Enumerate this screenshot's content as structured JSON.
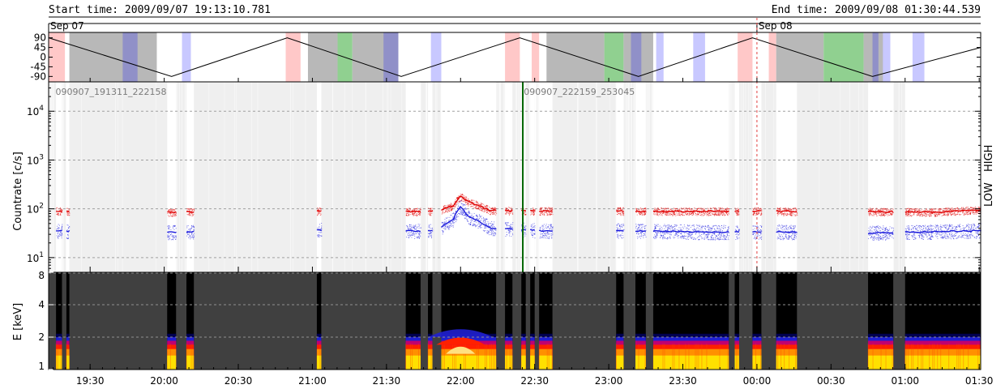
{
  "header": {
    "start": "Start time: 2009/09/07 19:13:10.781",
    "end": "End time: 2009/09/08 01:30:44.539"
  },
  "colors": {
    "low": "#e00000",
    "high": "#1a1adc",
    "saa": "#ffc8c8",
    "eclipse": "#b8b8b8",
    "dark": "#9090c8",
    "lightblue": "#c8c8ff",
    "green": "#90d090",
    "flare_marker": "#006400",
    "midnight_marker": "#e04040"
  },
  "chart_data": [
    {
      "type": "line",
      "panel": "orbit",
      "yticks": [
        "90",
        "45",
        "0",
        "-45",
        "-90"
      ],
      "ylim": [
        -100,
        100
      ],
      "date_labels": [
        {
          "t": 19.22,
          "text": "Sep 07"
        },
        {
          "t": 24.0,
          "text": "Sep 08"
        }
      ],
      "x": [
        19.22,
        20.05,
        20.83,
        21.6,
        22.4,
        23.2,
        23.97,
        24.78,
        25.51
      ],
      "values": [
        90,
        -90,
        90,
        -90,
        90,
        -90,
        90,
        -90,
        45
      ],
      "bands": [
        {
          "from": 19.22,
          "to": 19.33,
          "kind": "saa"
        },
        {
          "from": 19.36,
          "to": 19.95,
          "kind": "eclipse"
        },
        {
          "from": 19.72,
          "to": 19.82,
          "kind": "dark"
        },
        {
          "from": 20.12,
          "to": 20.18,
          "kind": "lightblue"
        },
        {
          "from": 20.82,
          "to": 20.92,
          "kind": "saa"
        },
        {
          "from": 20.97,
          "to": 21.17,
          "kind": "eclipse"
        },
        {
          "from": 21.17,
          "to": 21.27,
          "kind": "green"
        },
        {
          "from": 21.27,
          "to": 21.58,
          "kind": "eclipse"
        },
        {
          "from": 21.48,
          "to": 21.58,
          "kind": "dark"
        },
        {
          "from": 21.8,
          "to": 21.87,
          "kind": "lightblue"
        },
        {
          "from": 22.3,
          "to": 22.4,
          "kind": "saa"
        },
        {
          "from": 22.48,
          "to": 22.53,
          "kind": "saa"
        },
        {
          "from": 22.58,
          "to": 22.97,
          "kind": "eclipse"
        },
        {
          "from": 22.97,
          "to": 23.1,
          "kind": "green"
        },
        {
          "from": 23.1,
          "to": 23.3,
          "kind": "eclipse"
        },
        {
          "from": 23.15,
          "to": 23.22,
          "kind": "dark"
        },
        {
          "from": 23.32,
          "to": 23.37,
          "kind": "lightblue"
        },
        {
          "from": 23.57,
          "to": 23.65,
          "kind": "lightblue"
        },
        {
          "from": 23.87,
          "to": 23.97,
          "kind": "saa"
        },
        {
          "from": 24.08,
          "to": 24.13,
          "kind": "saa"
        },
        {
          "from": 24.13,
          "to": 24.45,
          "kind": "eclipse"
        },
        {
          "from": 24.45,
          "to": 24.72,
          "kind": "green"
        },
        {
          "from": 24.72,
          "to": 24.87,
          "kind": "eclipse"
        },
        {
          "from": 24.78,
          "to": 24.82,
          "kind": "dark"
        },
        {
          "from": 24.85,
          "to": 24.9,
          "kind": "lightblue"
        },
        {
          "from": 25.05,
          "to": 25.13,
          "kind": "lightblue"
        }
      ]
    },
    {
      "type": "line",
      "panel": "countrate",
      "ylabel": "Countrate [c/s]",
      "yscale": "log",
      "ylim": [
        5,
        40000
      ],
      "yticks": [
        {
          "v": 10,
          "base": "10",
          "exp": "1"
        },
        {
          "v": 100,
          "base": "10",
          "exp": "2"
        },
        {
          "v": 1000,
          "base": "10",
          "exp": "3"
        },
        {
          "v": 10000,
          "base": "10",
          "exp": "4"
        }
      ],
      "file_labels": [
        {
          "t": 19.25,
          "text": "090907_191311_222158"
        },
        {
          "t": 22.41,
          "text": "090907_222159_253045"
        }
      ],
      "legend": [
        "LOW",
        "HIGH"
      ],
      "legend_placement": "right",
      "gaps": [
        [
          19.22,
          19.27
        ],
        [
          19.31,
          19.34
        ],
        [
          19.36,
          20.02
        ],
        [
          20.08,
          20.15
        ],
        [
          20.2,
          21.03
        ],
        [
          21.06,
          21.63
        ],
        [
          21.73,
          21.78
        ],
        [
          21.81,
          21.87
        ],
        [
          22.24,
          22.3
        ],
        [
          22.35,
          22.41
        ],
        [
          22.44,
          22.47
        ],
        [
          22.5,
          22.53
        ],
        [
          22.62,
          23.05
        ],
        [
          23.1,
          23.18
        ],
        [
          23.25,
          23.3
        ],
        [
          23.81,
          23.85
        ],
        [
          23.88,
          23.97
        ],
        [
          24.03,
          24.13
        ],
        [
          24.27,
          24.75
        ],
        [
          24.92,
          25.0
        ]
      ],
      "data_segments": [
        [
          19.27,
          19.31
        ],
        [
          19.34,
          19.36
        ],
        [
          20.02,
          20.08
        ],
        [
          20.15,
          20.2
        ],
        [
          21.03,
          21.06
        ],
        [
          21.63,
          21.73
        ],
        [
          21.78,
          21.81
        ],
        [
          21.87,
          22.24
        ],
        [
          22.3,
          22.35
        ],
        [
          22.41,
          22.44
        ],
        [
          22.47,
          22.5
        ],
        [
          22.53,
          22.62
        ],
        [
          23.05,
          23.1
        ],
        [
          23.18,
          23.25
        ],
        [
          23.3,
          23.81
        ],
        [
          23.85,
          23.88
        ],
        [
          23.97,
          24.03
        ],
        [
          24.13,
          24.27
        ],
        [
          24.75,
          24.92
        ],
        [
          25.0,
          25.51
        ]
      ],
      "series": [
        {
          "name": "LOW",
          "x": [
            19.22,
            20.0,
            20.5,
            21.0,
            21.7,
            21.85,
            21.95,
            22.0,
            22.05,
            22.2,
            22.6,
            23.0,
            23.5,
            24.0,
            24.3,
            24.75,
            25.2,
            25.51
          ],
          "values": [
            90,
            85,
            88,
            90,
            88,
            90,
            115,
            180,
            140,
            92,
            90,
            90,
            88,
            90,
            88,
            88,
            85,
            95
          ]
        },
        {
          "name": "HIGH",
          "x": [
            19.22,
            20.0,
            20.5,
            21.0,
            21.7,
            21.85,
            21.95,
            22.0,
            22.05,
            22.2,
            22.6,
            23.0,
            23.3,
            23.7,
            24.0,
            24.3,
            24.75,
            25.2,
            25.51
          ],
          "values": [
            35,
            33,
            36,
            37,
            35,
            37,
            60,
            112,
            70,
            40,
            35,
            36,
            35,
            33,
            34,
            33,
            32,
            34,
            36
          ]
        }
      ],
      "markers": [
        {
          "t": 22.42,
          "kind": "flare"
        },
        {
          "t": 24.0,
          "kind": "midnight"
        }
      ]
    },
    {
      "type": "heatmap",
      "panel": "spectrogram",
      "ylabel": "E [keV]",
      "yscale": "log",
      "ylim": [
        1,
        8
      ],
      "yticks": [
        "1",
        "2",
        "4",
        "8"
      ],
      "flare_peak_t": 22.0
    },
    {
      "type": "axis",
      "xlim": [
        19.22,
        25.51
      ],
      "xticks": [
        {
          "t": 19.5,
          "text": "19:30"
        },
        {
          "t": 20.0,
          "text": "20:00"
        },
        {
          "t": 20.5,
          "text": "20:30"
        },
        {
          "t": 21.0,
          "text": "21:00"
        },
        {
          "t": 21.5,
          "text": "21:30"
        },
        {
          "t": 22.0,
          "text": "22:00"
        },
        {
          "t": 22.5,
          "text": "22:30"
        },
        {
          "t": 23.0,
          "text": "23:00"
        },
        {
          "t": 23.5,
          "text": "23:30"
        },
        {
          "t": 24.0,
          "text": "00:00"
        },
        {
          "t": 24.5,
          "text": "00:30"
        },
        {
          "t": 25.0,
          "text": "01:00"
        },
        {
          "t": 25.5,
          "text": "01:30"
        }
      ]
    }
  ]
}
